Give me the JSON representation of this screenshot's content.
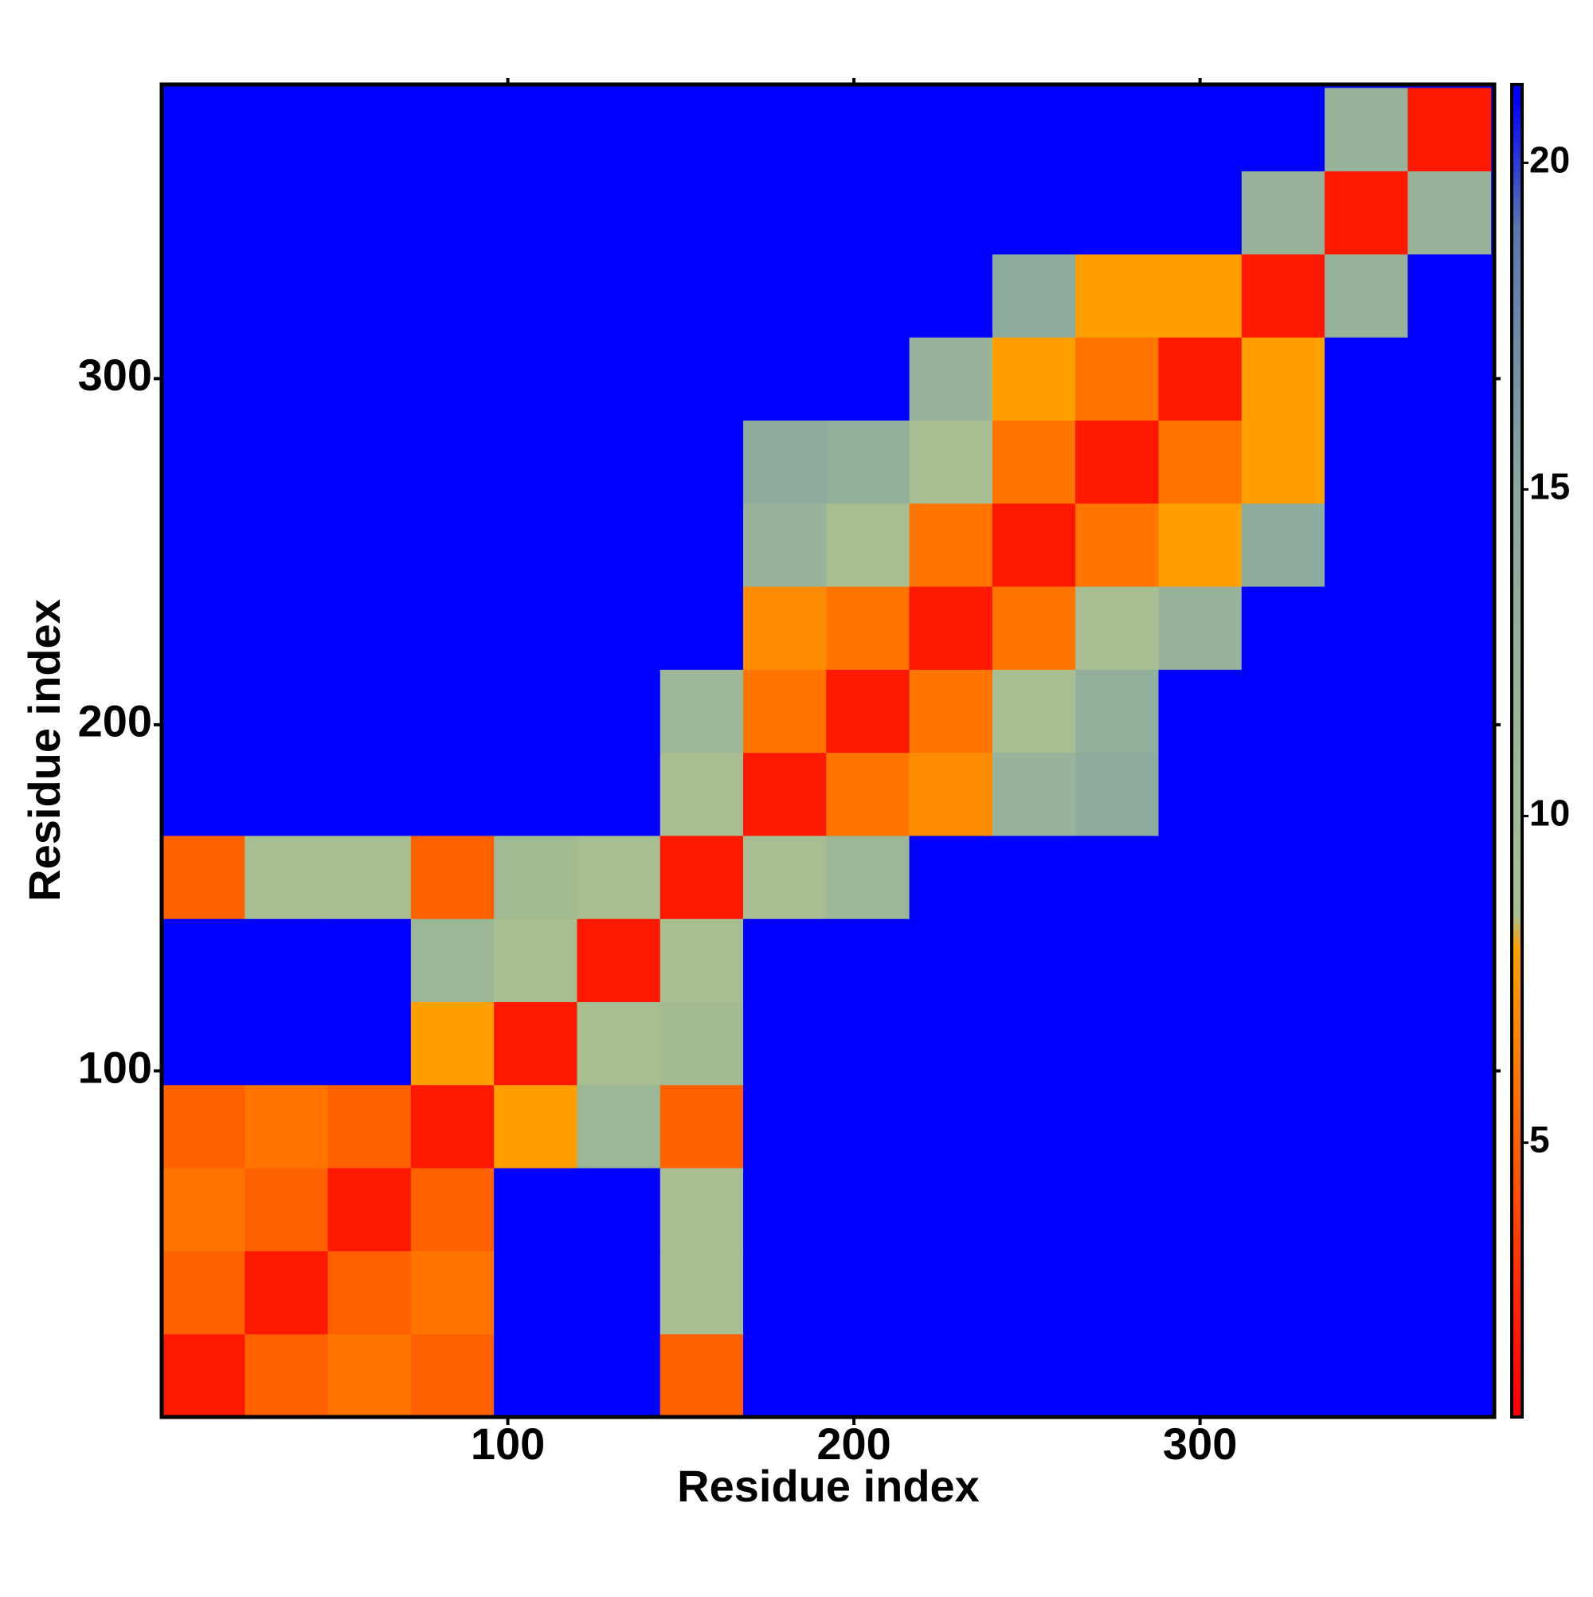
{
  "chart_data": {
    "type": "heatmap",
    "xlabel": "Residue index",
    "ylabel": "Residue index",
    "xbins": [
      0,
      24,
      48,
      72,
      96,
      120,
      144,
      168,
      192,
      216,
      240,
      264,
      288,
      312,
      336,
      360,
      384
    ],
    "ybins": [
      0,
      24,
      48,
      72,
      96,
      120,
      144,
      168,
      192,
      216,
      240,
      264,
      288,
      312,
      336,
      360,
      384
    ],
    "z": [
      [
        2,
        5,
        6,
        5,
        21,
        21,
        5,
        21,
        21,
        21,
        21,
        21,
        21,
        21,
        21,
        21
      ],
      [
        5,
        2,
        5,
        6,
        21,
        21,
        9,
        21,
        21,
        21,
        21,
        21,
        21,
        21,
        21,
        21
      ],
      [
        6,
        5,
        2,
        5,
        21,
        21,
        9,
        21,
        21,
        21,
        21,
        21,
        21,
        21,
        21,
        21
      ],
      [
        5,
        6,
        5,
        2,
        8,
        11,
        5,
        21,
        21,
        21,
        21,
        21,
        21,
        21,
        21,
        21
      ],
      [
        21,
        21,
        21,
        8,
        2,
        9,
        10,
        21,
        21,
        21,
        21,
        21,
        21,
        21,
        21,
        21
      ],
      [
        21,
        21,
        21,
        11,
        9,
        2,
        9,
        21,
        21,
        21,
        21,
        21,
        21,
        21,
        21,
        21
      ],
      [
        5,
        9,
        9,
        5,
        10,
        9,
        2,
        9,
        11,
        21,
        21,
        21,
        21,
        21,
        21,
        21
      ],
      [
        21,
        21,
        21,
        21,
        21,
        21,
        9,
        2,
        6,
        7,
        12,
        14,
        21,
        21,
        21,
        21
      ],
      [
        21,
        21,
        21,
        21,
        21,
        21,
        11,
        6,
        2,
        6,
        9,
        13,
        21,
        21,
        21,
        21
      ],
      [
        21,
        21,
        21,
        21,
        21,
        21,
        21,
        7,
        6,
        2,
        6,
        9,
        12,
        21,
        21,
        21
      ],
      [
        21,
        21,
        21,
        21,
        21,
        21,
        21,
        12,
        9,
        6,
        2,
        6,
        8,
        14,
        21,
        21
      ],
      [
        21,
        21,
        21,
        21,
        21,
        21,
        21,
        14,
        13,
        9,
        6,
        2,
        6,
        8,
        21,
        21
      ],
      [
        21,
        21,
        21,
        21,
        21,
        21,
        21,
        21,
        21,
        12,
        8,
        6,
        2,
        8,
        21,
        21
      ],
      [
        21,
        21,
        21,
        21,
        21,
        21,
        21,
        21,
        21,
        21,
        14,
        8,
        8,
        2,
        12,
        21
      ],
      [
        21,
        21,
        21,
        21,
        21,
        21,
        21,
        21,
        21,
        21,
        21,
        21,
        21,
        12,
        2,
        12
      ],
      [
        21,
        21,
        21,
        21,
        21,
        21,
        21,
        21,
        21,
        21,
        21,
        21,
        21,
        21,
        12,
        2
      ]
    ],
    "xlim": [
      0,
      385
    ],
    "ylim": [
      0,
      385
    ],
    "xticks": [
      100,
      200,
      300
    ],
    "yticks": [
      100,
      200,
      300
    ],
    "zlim": [
      0.8,
      21.2
    ],
    "zticks": [
      5,
      10,
      15,
      20
    ],
    "colorscale": [
      [
        1,
        "#ff0000"
      ],
      [
        5,
        "#ff6000"
      ],
      [
        8,
        "#ffa000"
      ],
      [
        8.5,
        "#a8c090"
      ],
      [
        15,
        "#88a8a0"
      ],
      [
        19,
        "#5878b0"
      ],
      [
        21,
        "#0000ff"
      ]
    ]
  }
}
